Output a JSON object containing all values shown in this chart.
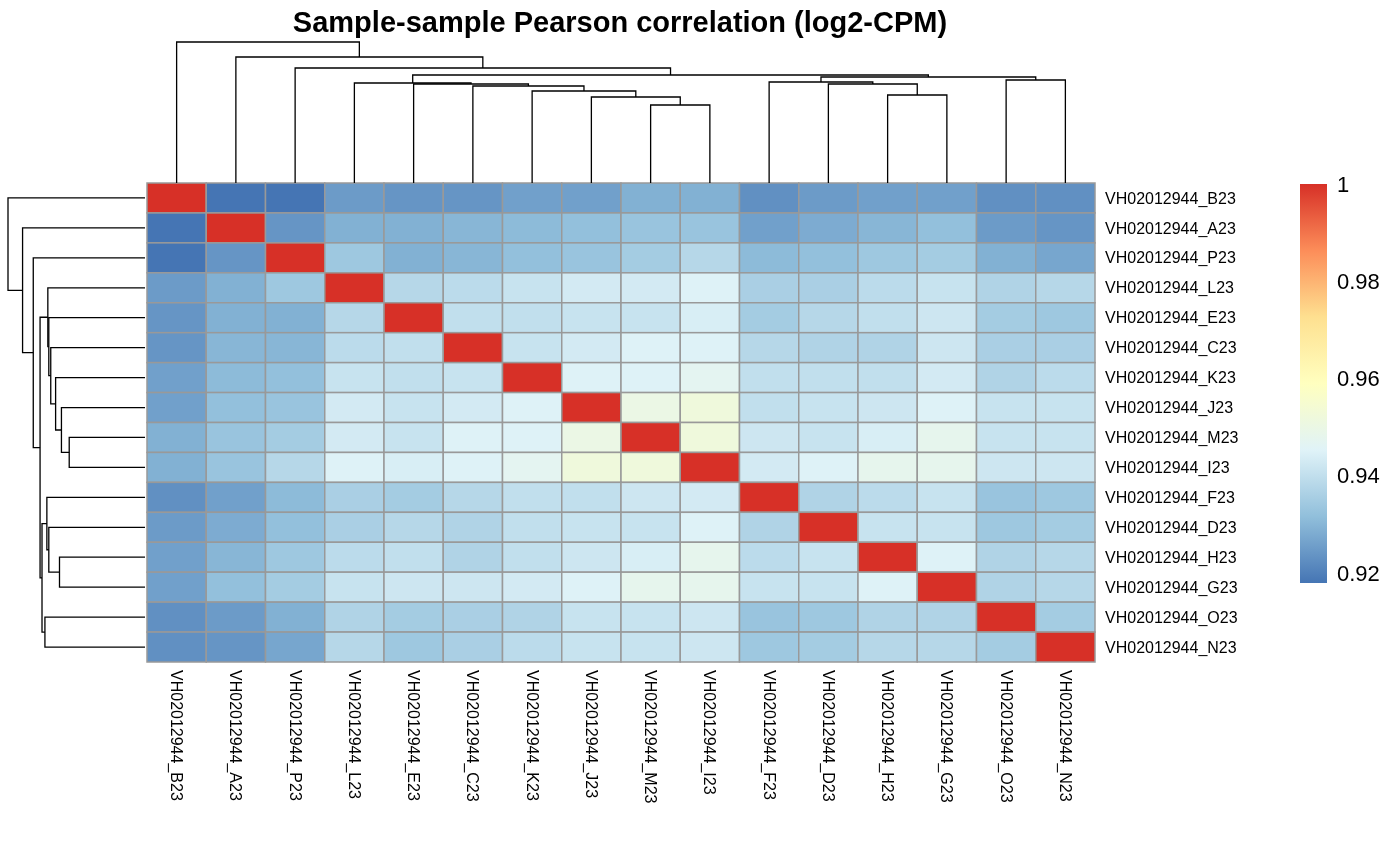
{
  "chart_data": {
    "type": "heatmap",
    "title": "Sample-sample Pearson correlation (log2-CPM)",
    "categories": [
      "VH02012944_B23",
      "VH02012944_A23",
      "VH02012944_P23",
      "VH02012944_L23",
      "VH02012944_E23",
      "VH02012944_C23",
      "VH02012944_K23",
      "VH02012944_J23",
      "VH02012944_M23",
      "VH02012944_I23",
      "VH02012944_F23",
      "VH02012944_D23",
      "VH02012944_H23",
      "VH02012944_G23",
      "VH02012944_O23",
      "VH02012944_N23"
    ],
    "y_categories": [
      "VH02012944_B23",
      "VH02012944_A23",
      "VH02012944_P23",
      "VH02012944_L23",
      "VH02012944_E23",
      "VH02012944_C23",
      "VH02012944_K23",
      "VH02012944_J23",
      "VH02012944_M23",
      "VH02012944_I23",
      "VH02012944_F23",
      "VH02012944_D23",
      "VH02012944_H23",
      "VH02012944_G23",
      "VH02012944_O23",
      "VH02012944_N23"
    ],
    "cells": [
      [
        1,
        0.918,
        0.918,
        0.925,
        0.924,
        0.924,
        0.926,
        0.926,
        0.929,
        0.929,
        0.923,
        0.925,
        0.926,
        0.926,
        0.923,
        0.923
      ],
      [
        0.918,
        1,
        0.924,
        0.929,
        0.929,
        0.93,
        0.931,
        0.932,
        0.933,
        0.933,
        0.926,
        0.928,
        0.93,
        0.932,
        0.925,
        0.924
      ],
      [
        0.918,
        0.924,
        1,
        0.934,
        0.929,
        0.93,
        0.932,
        0.933,
        0.935,
        0.938,
        0.931,
        0.932,
        0.934,
        0.935,
        0.929,
        0.927
      ],
      [
        0.925,
        0.929,
        0.934,
        1,
        0.938,
        0.939,
        0.941,
        0.943,
        0.943,
        0.945,
        0.936,
        0.936,
        0.939,
        0.941,
        0.937,
        0.938
      ],
      [
        0.924,
        0.929,
        0.929,
        0.938,
        1,
        0.94,
        0.94,
        0.941,
        0.941,
        0.944,
        0.935,
        0.938,
        0.94,
        0.942,
        0.935,
        0.934
      ],
      [
        0.924,
        0.93,
        0.93,
        0.939,
        0.94,
        1,
        0.941,
        0.943,
        0.945,
        0.945,
        0.938,
        0.937,
        0.937,
        0.942,
        0.936,
        0.936
      ],
      [
        0.926,
        0.931,
        0.932,
        0.941,
        0.94,
        0.941,
        1,
        0.945,
        0.945,
        0.947,
        0.94,
        0.94,
        0.94,
        0.943,
        0.937,
        0.939
      ],
      [
        0.926,
        0.932,
        0.933,
        0.943,
        0.941,
        0.943,
        0.945,
        1,
        0.95,
        0.952,
        0.94,
        0.941,
        0.942,
        0.945,
        0.941,
        0.941
      ],
      [
        0.929,
        0.933,
        0.935,
        0.943,
        0.941,
        0.945,
        0.945,
        0.95,
        1,
        0.952,
        0.942,
        0.941,
        0.944,
        0.948,
        0.941,
        0.941
      ],
      [
        0.929,
        0.933,
        0.938,
        0.945,
        0.944,
        0.945,
        0.947,
        0.952,
        0.952,
        1,
        0.943,
        0.945,
        0.948,
        0.948,
        0.942,
        0.942
      ],
      [
        0.923,
        0.926,
        0.931,
        0.936,
        0.935,
        0.938,
        0.94,
        0.94,
        0.942,
        0.943,
        1,
        0.937,
        0.939,
        0.941,
        0.933,
        0.934
      ],
      [
        0.925,
        0.928,
        0.932,
        0.936,
        0.938,
        0.937,
        0.94,
        0.941,
        0.941,
        0.945,
        0.937,
        1,
        0.941,
        0.941,
        0.934,
        0.935
      ],
      [
        0.926,
        0.93,
        0.934,
        0.939,
        0.94,
        0.937,
        0.94,
        0.942,
        0.944,
        0.948,
        0.939,
        0.941,
        1,
        0.945,
        0.937,
        0.938
      ],
      [
        0.926,
        0.932,
        0.935,
        0.941,
        0.942,
        0.942,
        0.943,
        0.945,
        0.948,
        0.948,
        0.941,
        0.941,
        0.945,
        1,
        0.937,
        0.938
      ],
      [
        0.923,
        0.925,
        0.929,
        0.937,
        0.935,
        0.936,
        0.937,
        0.941,
        0.941,
        0.942,
        0.933,
        0.934,
        0.937,
        0.937,
        1,
        0.935
      ],
      [
        0.923,
        0.924,
        0.927,
        0.938,
        0.934,
        0.936,
        0.939,
        0.941,
        0.941,
        0.942,
        0.934,
        0.935,
        0.938,
        0.938,
        0.935,
        1
      ]
    ],
    "clim": [
      0.918,
      1
    ],
    "cticks": [
      0.92,
      0.94,
      0.96,
      0.98,
      1
    ]
  }
}
